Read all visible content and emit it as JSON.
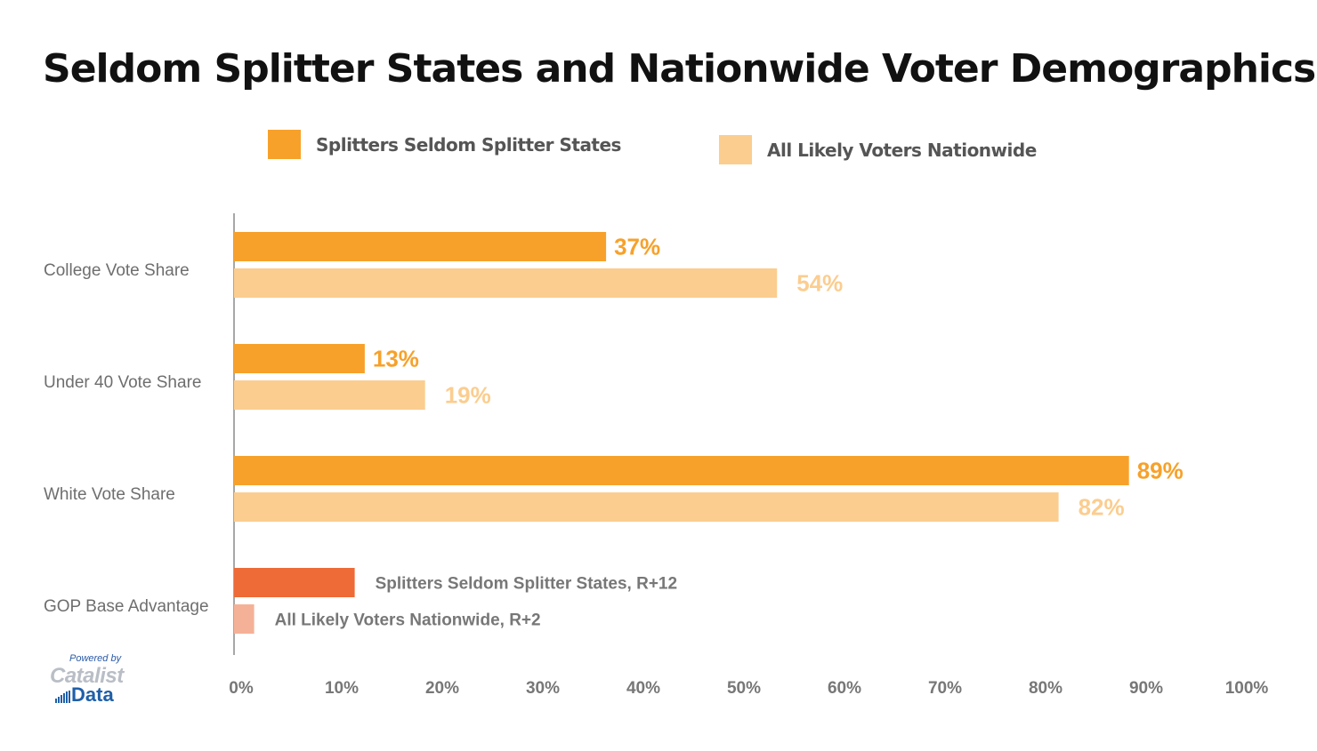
{
  "chart_data": {
    "type": "bar",
    "orientation": "horizontal",
    "title": "Seldom Splitter States and Nationwide Voter Demographics",
    "categories": [
      "College Vote Share",
      "Under 40 Vote Share",
      "White Vote Share",
      "GOP Base Advantage"
    ],
    "series": [
      {
        "name": "Splitters Seldom Splitter States",
        "color": "#f7a12a",
        "values": [
          37,
          13,
          89,
          12
        ],
        "labels": [
          "37%",
          "13%",
          "89%",
          "Splitters Seldom Splitter States, R+12"
        ],
        "colors": [
          "#f7a12a",
          "#f7a12a",
          "#f7a12a",
          "#ee6a36"
        ]
      },
      {
        "name": "All Likely Voters Nationwide",
        "color": "#fbcd8f",
        "values": [
          54,
          19,
          82,
          2
        ],
        "labels": [
          "54%",
          "19%",
          "82%",
          "All Likely Voters Nationwide, R+2"
        ],
        "colors": [
          "#fbcd8f",
          "#fbcd8f",
          "#fbcd8f",
          "#f5b197"
        ]
      }
    ],
    "x_ticks": [
      "0%",
      "10%",
      "20%",
      "30%",
      "40%",
      "50%",
      "60%",
      "70%",
      "80%",
      "90%",
      "100%"
    ],
    "xlim": [
      0,
      100
    ],
    "legend": "top-center",
    "grid": false
  },
  "logo": {
    "powered_by": "Powered by",
    "name": "Catalist",
    "data": "Data"
  }
}
